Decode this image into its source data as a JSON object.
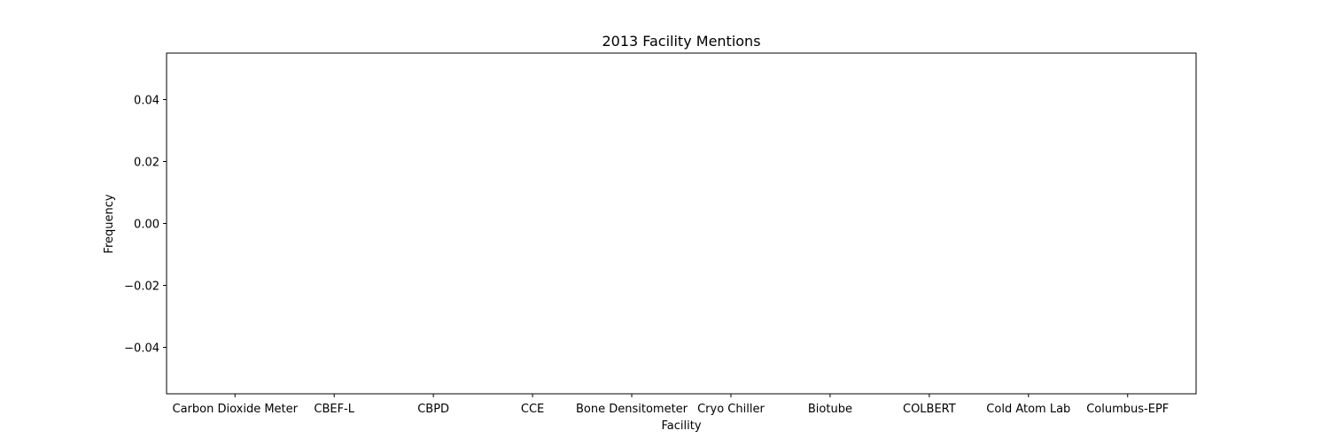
{
  "chart_data": {
    "type": "bar",
    "title": "2013 Facility Mentions",
    "xlabel": "Facility",
    "ylabel": "Frequency",
    "categories": [
      "Carbon Dioxide Meter",
      "CBEF-L",
      "CBPD",
      "CCE",
      "Bone Densitometer",
      "Cryo Chiller",
      "Biotube",
      "COLBERT",
      "Cold Atom Lab",
      "Columbus-EPF"
    ],
    "values": [
      0,
      0,
      0,
      0,
      0,
      0,
      0,
      0,
      0,
      0
    ],
    "ylim": [
      -0.055,
      0.055
    ],
    "yticks": [
      -0.04,
      -0.02,
      0.0,
      0.02,
      0.04
    ],
    "ytick_labels": [
      "−0.04",
      "−0.02",
      "0.00",
      "0.02",
      "0.04"
    ],
    "grid": false,
    "legend": "none",
    "colors": {
      "axis": "#000000",
      "background": "#ffffff",
      "bar": "#1f77b4"
    }
  }
}
